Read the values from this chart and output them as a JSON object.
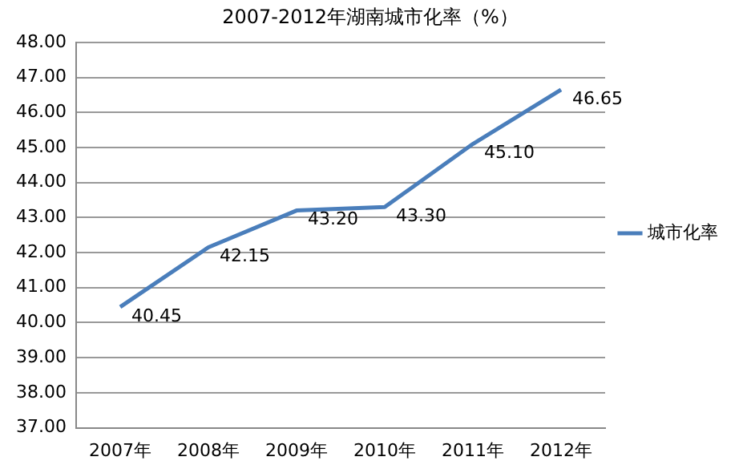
{
  "chart_data": {
    "type": "line",
    "title": "2007-2012年湖南城市化率（%）",
    "categories": [
      "2007年",
      "2008年",
      "2009年",
      "2010年",
      "2011年",
      "2012年"
    ],
    "series": [
      {
        "name": "城市化率",
        "color": "#4a7ebb",
        "values": [
          40.45,
          42.15,
          43.2,
          43.3,
          45.1,
          46.65
        ],
        "value_labels": [
          "40.45",
          "42.15",
          "43.20",
          "43.30",
          "45.10",
          "46.65"
        ]
      }
    ],
    "ylim": [
      37,
      48
    ],
    "yticks": [
      {
        "value": 37,
        "label": "37.00"
      },
      {
        "value": 38,
        "label": "38.00"
      },
      {
        "value": 39,
        "label": "39.00"
      },
      {
        "value": 40,
        "label": "40.00"
      },
      {
        "value": 41,
        "label": "41.00"
      },
      {
        "value": 42,
        "label": "42.00"
      },
      {
        "value": 43,
        "label": "43.00"
      },
      {
        "value": 44,
        "label": "44.00"
      },
      {
        "value": 45,
        "label": "45.00"
      },
      {
        "value": 46,
        "label": "46.00"
      },
      {
        "value": 47,
        "label": "47.00"
      },
      {
        "value": 48,
        "label": "48.00"
      }
    ],
    "grid": "y",
    "legend": "right",
    "marker": "none",
    "line_style": "solid"
  }
}
